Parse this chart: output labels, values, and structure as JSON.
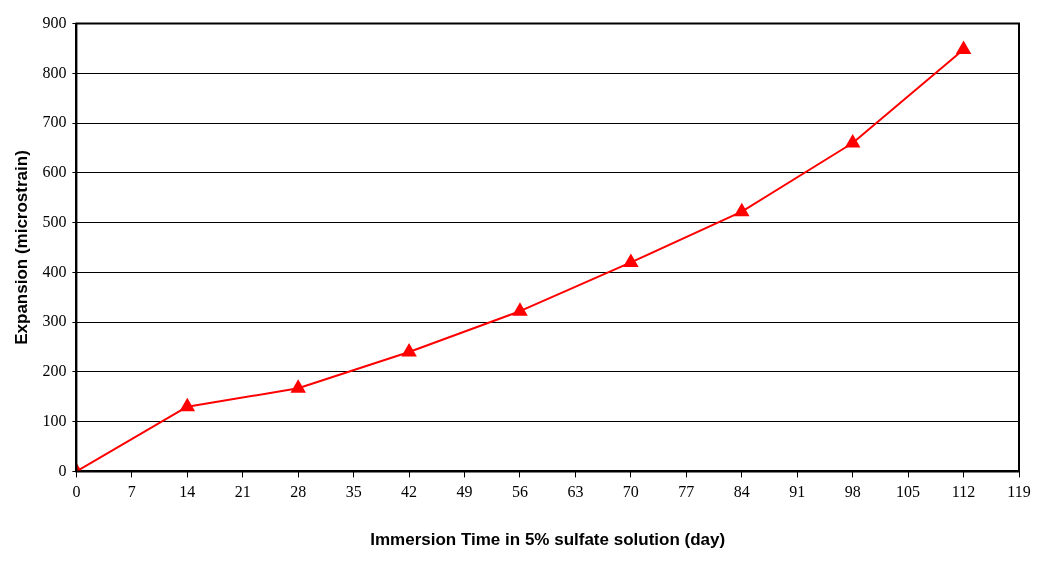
{
  "chart_data": {
    "type": "line",
    "xlabel": "Immersion Time in 5% sulfate solution (day)",
    "ylabel": "Expansion (microstrain)",
    "x": [
      0,
      14,
      28,
      42,
      56,
      70,
      84,
      98,
      112
    ],
    "series": [
      {
        "color": "#ff0000",
        "values": [
          0,
          130,
          167,
          240,
          322,
          420,
          522,
          660,
          848
        ]
      }
    ],
    "xlim": [
      0,
      119
    ],
    "xticks": [
      0,
      7,
      14,
      21,
      28,
      35,
      42,
      49,
      56,
      63,
      70,
      77,
      84,
      91,
      98,
      105,
      112,
      119
    ],
    "ylim": [
      0,
      900
    ],
    "yticks": [
      0,
      100,
      200,
      300,
      400,
      500,
      600,
      700,
      800,
      900
    ],
    "grid": "y",
    "legend": false,
    "marker": "triangle",
    "line_style": "solid"
  }
}
